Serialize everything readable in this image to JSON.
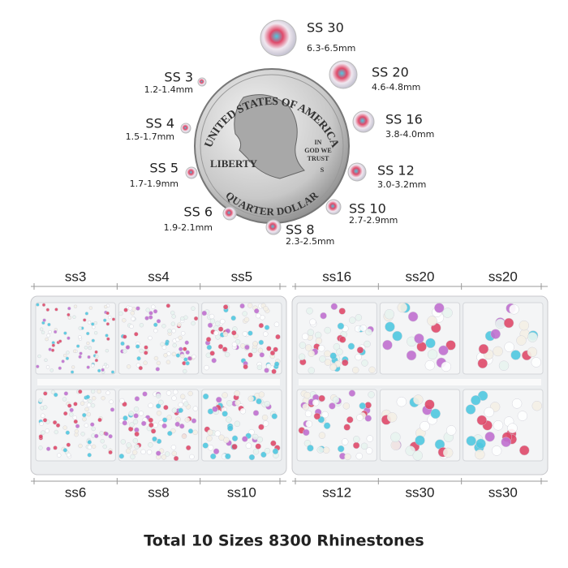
{
  "sizes": [
    {
      "name": "SS 30",
      "range": "6.3-6.5mm"
    },
    {
      "name": "SS 20",
      "range": "4.6-4.8mm"
    },
    {
      "name": "SS 16",
      "range": "3.8-4.0mm"
    },
    {
      "name": "SS 12",
      "range": "3.0-3.2mm"
    },
    {
      "name": "SS 10",
      "range": "2.7-2.9mm"
    },
    {
      "name": "SS 8",
      "range": "2.3-2.5mm"
    },
    {
      "name": "SS 6",
      "range": "1.9-2.1mm"
    },
    {
      "name": "SS 5",
      "range": "1.7-1.9mm"
    },
    {
      "name": "SS 4",
      "range": "1.5-1.7mm"
    },
    {
      "name": "SS 3",
      "range": "1.2-1.4mm"
    }
  ],
  "coin": {
    "top": "UNITED STATES OF AMERICA",
    "left": "LIBERTY",
    "bottom": "QUARTER DOLLAR",
    "motto": [
      "IN",
      "GOD WE",
      "TRUST"
    ],
    "mint": "S"
  },
  "boxes": [
    {
      "top": [
        "ss3",
        "ss4",
        "ss5"
      ],
      "bottom": [
        "ss6",
        "ss8",
        "ss10"
      ]
    },
    {
      "top": [
        "ss16",
        "ss20",
        "ss20"
      ],
      "bottom": [
        "ss12",
        "ss30",
        "ss30"
      ]
    }
  ],
  "caption": "Total 10 Sizes 8300 Rhinestones"
}
